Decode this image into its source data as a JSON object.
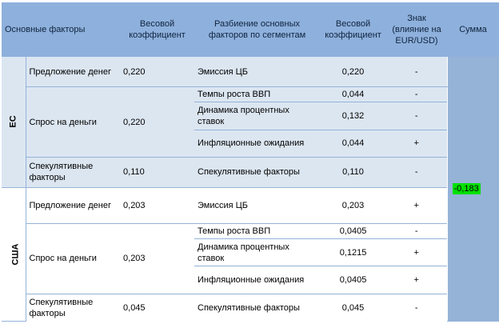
{
  "headers": {
    "factors": "Основные факторы",
    "weight": "Весовой коэффициент",
    "breakdown": "Разбиение основных факторов по сегментам",
    "weight2": "Весовой коэффициент",
    "sign": "Знак (влияние на EUR/USD)",
    "sum": "Сумма"
  },
  "regions": [
    {
      "label": "ЕС",
      "rows": [
        {
          "factor": "Предложение денег",
          "weight": "0,220",
          "segment": "Эмиссия ЦБ",
          "weight2": "0,220",
          "sign": "-"
        },
        {
          "factor": "Спрос на деньги",
          "weight": "0,220",
          "segment": "Темпы роста ВВП",
          "weight2": "0,044",
          "sign": "-"
        },
        {
          "segment": "Динамика процентных ставок",
          "weight2": "0,132",
          "sign": "-"
        },
        {
          "segment": "Инфляционные ожидания",
          "weight2": "0,044",
          "sign": "+"
        },
        {
          "factor": "Спекулятивные факторы",
          "weight": "0,110",
          "segment": "Спекулятивные факторы",
          "weight2": "0,110",
          "sign": "-"
        }
      ]
    },
    {
      "label": "США",
      "rows": [
        {
          "factor": "Предложение денег",
          "weight": "0,203",
          "segment": "Эмиссия ЦБ",
          "weight2": "0,203",
          "sign": "+"
        },
        {
          "factor": "Спрос на деньги",
          "weight": "0,203",
          "segment": "Темпы роста ВВП",
          "weight2": "0,0405",
          "sign": "-"
        },
        {
          "segment": "Динамика процентных ставок",
          "weight2": "0,1215",
          "sign": "+"
        },
        {
          "segment": "Инфляционные ожидания",
          "weight2": "0,0405",
          "sign": "+"
        },
        {
          "factor": "Спекулятивные факторы",
          "weight": "0,045",
          "segment": "Спекулятивные факторы",
          "weight2": "0,045",
          "sign": "-"
        }
      ]
    }
  ],
  "sum_value": "-0,183",
  "colors": {
    "header_bg": "#8eb0dc",
    "ec_band": "#dce6f1",
    "sum_col": "#95b3d7",
    "sum_highlight": "#00e000"
  }
}
